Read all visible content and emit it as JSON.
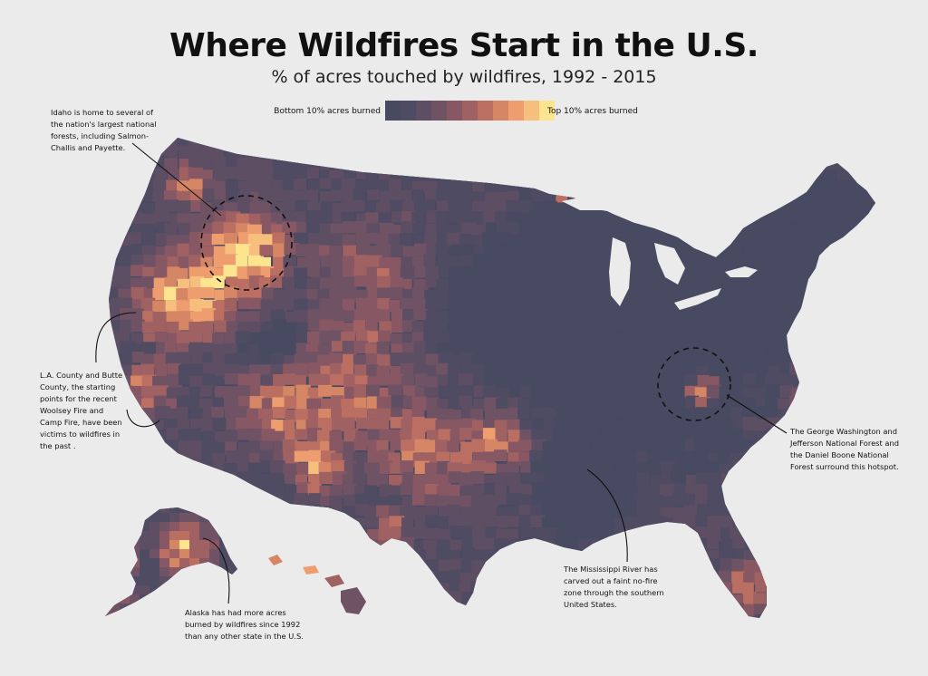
{
  "title": "Where Wildfires Start in the U.S.",
  "subtitle": "% of acres touched by wildfires, 1992 - 2015",
  "legend": {
    "low_label": "Bottom 10% acres burned",
    "high_label": "Top 10% acres burned",
    "colors": [
      "#474a61",
      "#4f4b62",
      "#5d4e63",
      "#6f5263",
      "#875863",
      "#a06163",
      "#bb6f62",
      "#d58664",
      "#ee9e6e",
      "#f6bf7d",
      "#fde58f"
    ]
  },
  "annotations": {
    "idaho": [
      "Idaho is home to several of",
      "the nation's largest national",
      "forests, including Salmon-",
      "Challis and Payette."
    ],
    "california": [
      "L.A. County and Butte",
      "County, the starting",
      "points for the recent",
      "Woolsey Fire and",
      "Camp Fire, have been",
      "victims to wildfires in",
      "the past ."
    ],
    "virginia": [
      "The George Washington and",
      "Jefferson National Forest and",
      "the Daniel Boone National",
      "Forest surround this hotspot."
    ],
    "mississippi": [
      "The Mississippi River has",
      "carved out a faint no-fire",
      "zone through the southern",
      "United States."
    ],
    "alaska": [
      "Alaska has had more acres",
      "burned by wildfires since 1992",
      "than any other state in the U.S."
    ]
  },
  "map_colors": {
    "base": "#474a61",
    "background": "#ebebeb",
    "leader_line": "#111111"
  }
}
